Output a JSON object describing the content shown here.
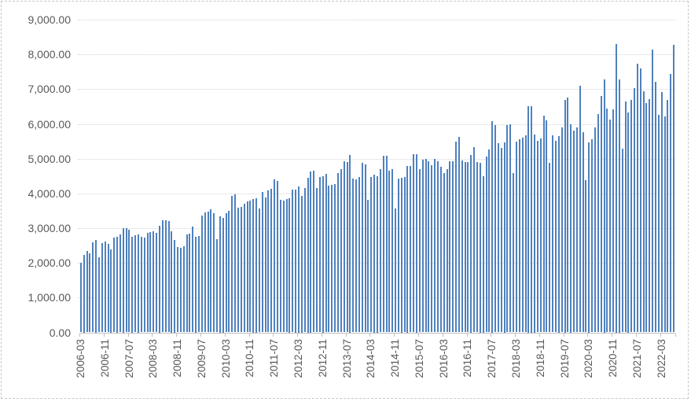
{
  "chart_data": {
    "type": "bar",
    "title": "",
    "xlabel": "",
    "ylabel": "",
    "legend": "none",
    "grid": "horizontal-dotted",
    "ylim": [
      0,
      9000
    ],
    "y_step": 1000,
    "y_tick_labels": [
      "0.00",
      "1,000.00",
      "2,000.00",
      "3,000.00",
      "4,000.00",
      "5,000.00",
      "6,000.00",
      "7,000.00",
      "8,000.00",
      "9,000.00"
    ],
    "x_tick_labels": [
      "2006-03",
      "2006-11",
      "2007-07",
      "2008-03",
      "2008-11",
      "2009-07",
      "2010-03",
      "2010-11",
      "2011-07",
      "2012-03",
      "2012-11",
      "2013-07",
      "2014-03",
      "2014-11",
      "2015-07",
      "2016-03",
      "2016-11",
      "2017-07",
      "2018-03",
      "2018-11",
      "2019-07",
      "2020-03",
      "2020-11",
      "2021-07",
      "2022-03"
    ],
    "x_label_interval": 8,
    "start_month": "2006-03",
    "frequency": "monthly",
    "values": [
      2010,
      2230,
      2350,
      2280,
      2600,
      2660,
      2160,
      2560,
      2620,
      2540,
      2400,
      2720,
      2750,
      2810,
      3000,
      3010,
      2960,
      2750,
      2790,
      2830,
      2760,
      2720,
      2870,
      2880,
      2900,
      2870,
      3080,
      3220,
      3230,
      3210,
      2910,
      2660,
      2450,
      2430,
      2470,
      2820,
      2850,
      3050,
      2750,
      2770,
      3370,
      3460,
      3470,
      3550,
      3420,
      2690,
      3350,
      3300,
      3440,
      3500,
      3920,
      3970,
      3580,
      3620,
      3700,
      3760,
      3790,
      3850,
      3860,
      3560,
      4050,
      3880,
      4090,
      4130,
      4400,
      4350,
      3820,
      3800,
      3830,
      3860,
      4100,
      4120,
      4200,
      3940,
      4150,
      4450,
      4630,
      4650,
      4160,
      4480,
      4500,
      4560,
      4220,
      4250,
      4260,
      4590,
      4700,
      4920,
      4910,
      5100,
      4420,
      4400,
      4470,
      4870,
      4840,
      3820,
      4470,
      4550,
      4500,
      4690,
      5080,
      5090,
      4650,
      4700,
      3560,
      4420,
      4450,
      4480,
      4800,
      4780,
      5120,
      5140,
      4700,
      4960,
      5000,
      4930,
      4820,
      5000,
      4930,
      4770,
      4580,
      4690,
      4920,
      4920,
      5500,
      5630,
      4950,
      4900,
      4900,
      5100,
      5330,
      4900,
      4880,
      4500,
      5070,
      5260,
      6080,
      5970,
      5440,
      5300,
      5480,
      5960,
      5980,
      4580,
      5500,
      5550,
      5600,
      5670,
      6510,
      6520,
      5700,
      5520,
      5580,
      6230,
      6100,
      4870,
      5680,
      5520,
      5650,
      5890,
      6690,
      6760,
      6000,
      5800,
      5900,
      7090,
      5760,
      4390,
      5480,
      5560,
      5890,
      6290,
      6800,
      7290,
      6450,
      6130,
      6420,
      8310,
      7290,
      5290,
      6650,
      6340,
      6700,
      7020,
      7740,
      7590,
      6930,
      6590,
      6720,
      8130,
      7210,
      6270,
      6910,
      6210,
      6700,
      7440,
      8270
    ],
    "colors": {
      "bar": "#4F81BD",
      "gridline": "#D4D4D4",
      "axis_line": "#BFBFBF",
      "tick_label": "#595959",
      "background": "#FFFFFF"
    }
  }
}
